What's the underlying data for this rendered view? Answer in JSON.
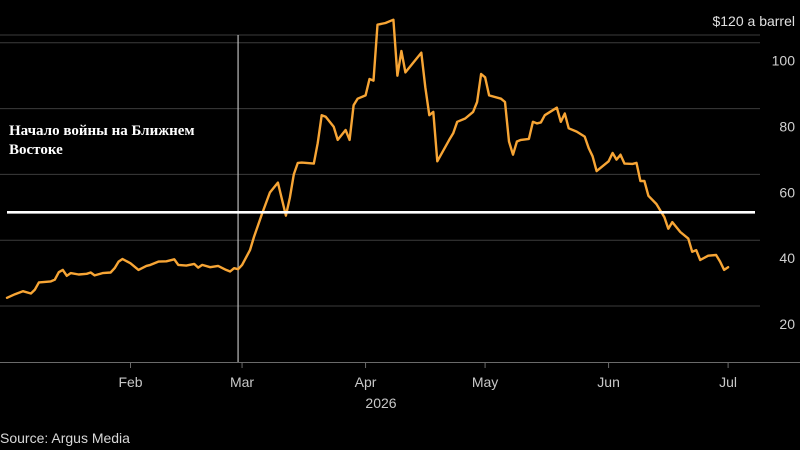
{
  "chart_data": {
    "type": "line",
    "title": "",
    "unit_label": "$120 a barrel",
    "xlabel": "2026",
    "ylabel": "",
    "ylim": [
      13,
      123
    ],
    "xlim": [
      "2026-01-01",
      "2026-07-07"
    ],
    "yticks": [
      20,
      40,
      60,
      80,
      100
    ],
    "grid": true,
    "xticks": [
      {
        "label": "Feb",
        "date": "2026-02-01"
      },
      {
        "label": "Mar",
        "date": "2026-03-01"
      },
      {
        "label": "Apr",
        "date": "2026-04-01"
      },
      {
        "label": "May",
        "date": "2026-05-01"
      },
      {
        "label": "Jun",
        "date": "2026-06-01"
      },
      {
        "label": "Jul",
        "date": "2026-07-01"
      }
    ],
    "reference_line": {
      "value": 58.5
    },
    "event_line": {
      "date": "2026-02-28",
      "label_lines": [
        "Начало войны на Ближнем",
        "Востоке"
      ]
    },
    "series": [
      {
        "color": "#f7a535",
        "points": [
          [
            "2026-01-01",
            32.5
          ],
          [
            "2026-01-03",
            33.6
          ],
          [
            "2026-01-05",
            34.5
          ],
          [
            "2026-01-07",
            33.8
          ],
          [
            "2026-01-08",
            35.0
          ],
          [
            "2026-01-09",
            37.2
          ],
          [
            "2026-01-12",
            37.5
          ],
          [
            "2026-01-13",
            38.0
          ],
          [
            "2026-01-14",
            40.3
          ],
          [
            "2026-01-15",
            41.0
          ],
          [
            "2026-01-16",
            39.2
          ],
          [
            "2026-01-17",
            40.0
          ],
          [
            "2026-01-19",
            39.6
          ],
          [
            "2026-01-21",
            39.8
          ],
          [
            "2026-01-22",
            40.2
          ],
          [
            "2026-01-23",
            39.3
          ],
          [
            "2026-01-25",
            40.0
          ],
          [
            "2026-01-27",
            40.2
          ],
          [
            "2026-01-28",
            41.5
          ],
          [
            "2026-01-29",
            43.5
          ],
          [
            "2026-01-30",
            44.3
          ],
          [
            "2026-02-01",
            43.0
          ],
          [
            "2026-02-03",
            41.0
          ],
          [
            "2026-02-05",
            42.2
          ],
          [
            "2026-02-06",
            42.5
          ],
          [
            "2026-02-08",
            43.5
          ],
          [
            "2026-02-10",
            43.6
          ],
          [
            "2026-02-12",
            44.2
          ],
          [
            "2026-02-13",
            42.5
          ],
          [
            "2026-02-15",
            42.3
          ],
          [
            "2026-02-17",
            42.8
          ],
          [
            "2026-02-18",
            41.7
          ],
          [
            "2026-02-19",
            42.5
          ],
          [
            "2026-02-21",
            41.8
          ],
          [
            "2026-02-23",
            42.2
          ],
          [
            "2026-02-25",
            41.0
          ],
          [
            "2026-02-26",
            40.5
          ],
          [
            "2026-02-27",
            41.5
          ],
          [
            "2026-02-28",
            41.2
          ],
          [
            "2026-03-01",
            42.5
          ],
          [
            "2026-03-03",
            47.0
          ],
          [
            "2026-03-04",
            51.0
          ],
          [
            "2026-03-06",
            58.0
          ],
          [
            "2026-03-08",
            64.5
          ],
          [
            "2026-03-10",
            67.5
          ],
          [
            "2026-03-12",
            57.5
          ],
          [
            "2026-03-13",
            63.0
          ],
          [
            "2026-03-14",
            70.0
          ],
          [
            "2026-03-15",
            73.5
          ],
          [
            "2026-03-16",
            73.6
          ],
          [
            "2026-03-19",
            73.3
          ],
          [
            "2026-03-20",
            79.5
          ],
          [
            "2026-03-21",
            88.0
          ],
          [
            "2026-03-22",
            87.5
          ],
          [
            "2026-03-24",
            84.5
          ],
          [
            "2026-03-25",
            80.5
          ],
          [
            "2026-03-27",
            83.5
          ],
          [
            "2026-03-28",
            80.5
          ],
          [
            "2026-03-29",
            91.0
          ],
          [
            "2026-03-30",
            93.0
          ],
          [
            "2026-04-01",
            94.0
          ],
          [
            "2026-04-02",
            99.0
          ],
          [
            "2026-04-03",
            98.5
          ],
          [
            "2026-04-04",
            115.5
          ],
          [
            "2026-04-06",
            116.0
          ],
          [
            "2026-04-08",
            117.0
          ],
          [
            "2026-04-09",
            100.0
          ],
          [
            "2026-04-10",
            107.5
          ],
          [
            "2026-04-11",
            101.0
          ],
          [
            "2026-04-13",
            104.0
          ],
          [
            "2026-04-15",
            107.0
          ],
          [
            "2026-04-16",
            96.5
          ],
          [
            "2026-04-17",
            88.0
          ],
          [
            "2026-04-18",
            89.0
          ],
          [
            "2026-04-19",
            74.0
          ],
          [
            "2026-04-22",
            80.5
          ],
          [
            "2026-04-23",
            82.5
          ],
          [
            "2026-04-24",
            86.0
          ],
          [
            "2026-04-26",
            87.0
          ],
          [
            "2026-04-28",
            89.0
          ],
          [
            "2026-04-29",
            92.0
          ],
          [
            "2026-04-30",
            100.5
          ],
          [
            "2026-05-01",
            99.5
          ],
          [
            "2026-05-02",
            94.0
          ],
          [
            "2026-05-05",
            93.0
          ],
          [
            "2026-05-06",
            92.0
          ],
          [
            "2026-05-07",
            80.0
          ],
          [
            "2026-05-08",
            76.0
          ],
          [
            "2026-05-09",
            80.0
          ],
          [
            "2026-05-10",
            80.5
          ],
          [
            "2026-05-12",
            80.8
          ],
          [
            "2026-05-13",
            86.0
          ],
          [
            "2026-05-14",
            85.5
          ],
          [
            "2026-05-15",
            85.8
          ],
          [
            "2026-05-16",
            88.0
          ],
          [
            "2026-05-18",
            89.5
          ],
          [
            "2026-05-19",
            90.3
          ],
          [
            "2026-05-20",
            86.0
          ],
          [
            "2026-05-21",
            88.5
          ],
          [
            "2026-05-22",
            84.0
          ],
          [
            "2026-05-24",
            83.0
          ],
          [
            "2026-05-26",
            81.5
          ],
          [
            "2026-05-27",
            78.0
          ],
          [
            "2026-05-28",
            75.5
          ],
          [
            "2026-05-29",
            71.0
          ],
          [
            "2026-06-01",
            74.0
          ],
          [
            "2026-06-02",
            76.5
          ],
          [
            "2026-06-03",
            74.5
          ],
          [
            "2026-06-04",
            76.0
          ],
          [
            "2026-06-05",
            73.3
          ],
          [
            "2026-06-07",
            73.2
          ],
          [
            "2026-06-08",
            73.5
          ],
          [
            "2026-06-09",
            68.0
          ],
          [
            "2026-06-10",
            68.0
          ],
          [
            "2026-06-11",
            63.5
          ],
          [
            "2026-06-13",
            61.0
          ],
          [
            "2026-06-15",
            57.0
          ],
          [
            "2026-06-16",
            53.5
          ],
          [
            "2026-06-17",
            55.5
          ],
          [
            "2026-06-19",
            52.5
          ],
          [
            "2026-06-21",
            50.5
          ],
          [
            "2026-06-22",
            46.5
          ],
          [
            "2026-06-23",
            47.0
          ],
          [
            "2026-06-24",
            44.0
          ],
          [
            "2026-06-26",
            45.3
          ],
          [
            "2026-06-28",
            45.5
          ],
          [
            "2026-06-29",
            43.5
          ],
          [
            "2026-06-30",
            41.0
          ],
          [
            "2026-07-01",
            41.8
          ]
        ]
      }
    ]
  },
  "source": "Source: Argus Media"
}
